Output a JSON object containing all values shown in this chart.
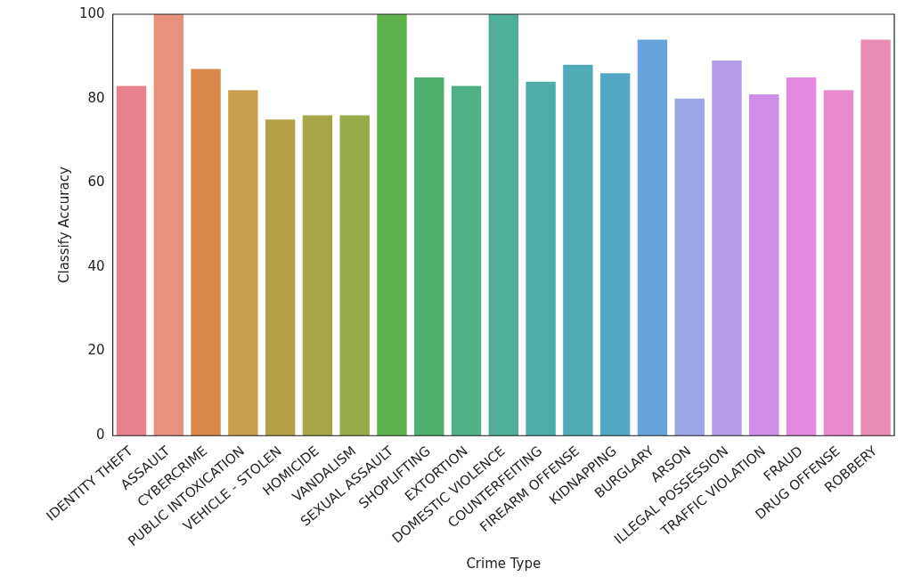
{
  "chart_data": {
    "type": "bar",
    "xlabel": "Crime Type",
    "ylabel": "Classify Accuracy",
    "categories": [
      "IDENTITY THEFT",
      "ASSAULT",
      "CYBERCRIME",
      "PUBLIC INTOXICATION",
      "VEHICLE - STOLEN",
      "HOMICIDE",
      "VANDALISM",
      "SEXUAL ASSAULT",
      "SHOPLIFTING",
      "EXTORTION",
      "DOMESTIC VIOLENCE",
      "COUNTERFEITING",
      "FIREARM OFFENSE",
      "KIDNAPPING",
      "BURGLARY",
      "ARSON",
      "ILLEGAL POSSESSION",
      "TRAFFIC VIOLATION",
      "FRAUD",
      "DRUG OFFENSE",
      "ROBBERY"
    ],
    "values": [
      83,
      100,
      87,
      82,
      75,
      76,
      76,
      100,
      85,
      83,
      100,
      84,
      88,
      86,
      94,
      80,
      89,
      81,
      85,
      82,
      94
    ],
    "colors": [
      "#e7838f",
      "#e8927e",
      "#d9894a",
      "#c99e4e",
      "#b3a047",
      "#a6a548",
      "#97ab4a",
      "#5db14c",
      "#4eae6e",
      "#4faf85",
      "#4faf98",
      "#4fada7",
      "#51abb8",
      "#54a8c7",
      "#67a4dc",
      "#9aa6e6",
      "#b49ce6",
      "#cf8ee6",
      "#e288e0",
      "#e88acb",
      "#e88cb3"
    ],
    "ylim": [
      0,
      100
    ],
    "yticks": [
      0,
      20,
      40,
      60,
      80,
      100
    ],
    "grid": false,
    "legend": false
  }
}
